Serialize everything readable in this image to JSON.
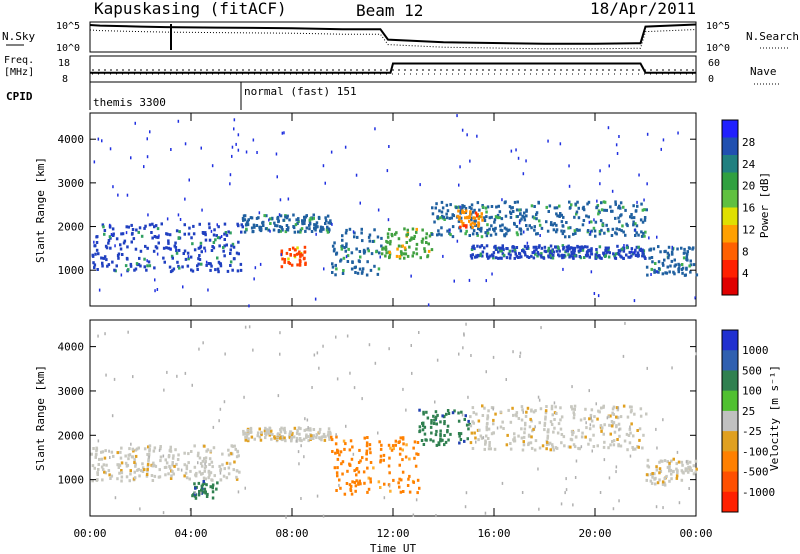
{
  "header": {
    "station": "Kapuskasing (fitACF)",
    "beam": "Beam 12",
    "date": "18/Apr/2011"
  },
  "chart_data": [
    {
      "type": "line",
      "name_panel": "nsky_nsearch",
      "left_label": "N.Sky",
      "right_label": "N.Search",
      "left_ticks": [
        "10^5",
        "10^0"
      ],
      "right_ticks": [
        "10^5",
        "10^0"
      ],
      "x_range_hours": [
        0,
        24
      ],
      "series": [
        {
          "values_log10": [
            [
              0,
              4.8
            ],
            [
              0.4,
              4.7
            ],
            [
              2,
              4.5
            ],
            [
              3,
              4.4
            ],
            [
              5,
              4.3
            ],
            [
              8,
              4.2
            ],
            [
              10,
              4.0
            ],
            [
              11.5,
              4.0
            ],
            [
              11.8,
              2.0
            ],
            [
              14,
              1.5
            ],
            [
              18,
              1.2
            ],
            [
              20,
              1.2
            ],
            [
              21.8,
              1.3
            ],
            [
              22,
              4.5
            ],
            [
              24,
              4.9
            ]
          ]
        }
      ]
    },
    {
      "type": "line",
      "name_panel": "freq_nave",
      "left_label": "Freq.\n[MHz]",
      "right_label": "Nave",
      "left_ticks": [
        "18",
        "8"
      ],
      "right_ticks": [
        "60",
        "0"
      ],
      "cpid_label": "CPID",
      "cpid_segments": [
        {
          "label": "themis 3300",
          "start": 0
        },
        {
          "label": "normal (fast) 151",
          "start": 6
        }
      ],
      "series": [
        {
          "name": "nave",
          "values": [
            [
              0,
              20
            ],
            [
              11.9,
              20
            ],
            [
              12,
              45
            ],
            [
              21.8,
              45
            ],
            [
              22,
              20
            ],
            [
              24,
              20
            ]
          ]
        }
      ]
    },
    {
      "type": "heatmap",
      "name_panel": "power",
      "ylabel": "Slant Range [km]",
      "yticks": [
        1000,
        2000,
        3000,
        4000
      ],
      "ylim": [
        180,
        4600
      ],
      "xlim": [
        0,
        24
      ],
      "colorbar_label": "Power [dB]",
      "colorbar_ticks": [
        4,
        8,
        12,
        16,
        20,
        24,
        28
      ],
      "colorbar_colors": [
        "#2020ff",
        "#2050b0",
        "#208080",
        "#30a040",
        "#60c040",
        "#e0e000",
        "#ffa000",
        "#ff6000",
        "#ff2000",
        "#e00000"
      ],
      "echo_bands": [
        {
          "t0": 0.0,
          "t1": 6.0,
          "r0": 1000,
          "r1": 2100,
          "level": 1
        },
        {
          "t0": 6.0,
          "t1": 9.5,
          "r0": 1900,
          "r1": 2300,
          "level": 2
        },
        {
          "t0": 9.5,
          "t1": 11.5,
          "r0": 900,
          "r1": 2000,
          "level": 2
        },
        {
          "t0": 11.5,
          "t1": 13.5,
          "r0": 1300,
          "r1": 2000,
          "level": 3
        },
        {
          "t0": 13.5,
          "t1": 22.0,
          "r0": 1800,
          "r1": 2600,
          "level": 2
        },
        {
          "t0": 15.0,
          "t1": 22.0,
          "r0": 1300,
          "r1": 1600,
          "level": 1
        },
        {
          "t0": 22.0,
          "t1": 24.0,
          "r0": 900,
          "r1": 1600,
          "level": 2
        },
        {
          "t0": 7.5,
          "t1": 8.5,
          "r0": 1100,
          "r1": 1600,
          "level": 5
        },
        {
          "t0": 14.5,
          "t1": 15.5,
          "r0": 2000,
          "r1": 2400,
          "level": 4
        }
      ]
    },
    {
      "type": "heatmap",
      "name_panel": "velocity",
      "ylabel": "Slant Range [km]",
      "yticks": [
        1000,
        2000,
        3000,
        4000
      ],
      "ylim": [
        180,
        4600
      ],
      "xlim": [
        0,
        24
      ],
      "xticks": [
        "00:00",
        "04:00",
        "08:00",
        "12:00",
        "16:00",
        "20:00",
        "00:00"
      ],
      "xlabel": "Time UT",
      "colorbar_label": "Velocity [m s⁻¹]",
      "colorbar_ticks": [
        "1000",
        "500",
        "100",
        "25",
        "-25",
        "-100",
        "-500",
        "-1000"
      ],
      "colorbar_colors": [
        "#2030d0",
        "#3060b0",
        "#308050",
        "#50c030",
        "#c0c0c0",
        "#e0a020",
        "#ff8000",
        "#ff5000",
        "#ff2000"
      ],
      "echo_bands": [
        {
          "t0": 0.0,
          "t1": 6.0,
          "r0": 1000,
          "r1": 1800,
          "level": "gray"
        },
        {
          "t0": 6.0,
          "t1": 9.5,
          "r0": 1900,
          "r1": 2200,
          "level": "gray"
        },
        {
          "t0": 9.5,
          "t1": 13.0,
          "r0": 700,
          "r1": 2000,
          "level": "orange"
        },
        {
          "t0": 13.0,
          "t1": 15.0,
          "r0": 1800,
          "r1": 2600,
          "level": "green"
        },
        {
          "t0": 15.0,
          "t1": 22.0,
          "r0": 1700,
          "r1": 2700,
          "level": "gray"
        },
        {
          "t0": 22.0,
          "t1": 24.0,
          "r0": 900,
          "r1": 1500,
          "level": "gray"
        },
        {
          "t0": 4.0,
          "t1": 5.0,
          "r0": 600,
          "r1": 1000,
          "level": "green"
        }
      ]
    }
  ]
}
